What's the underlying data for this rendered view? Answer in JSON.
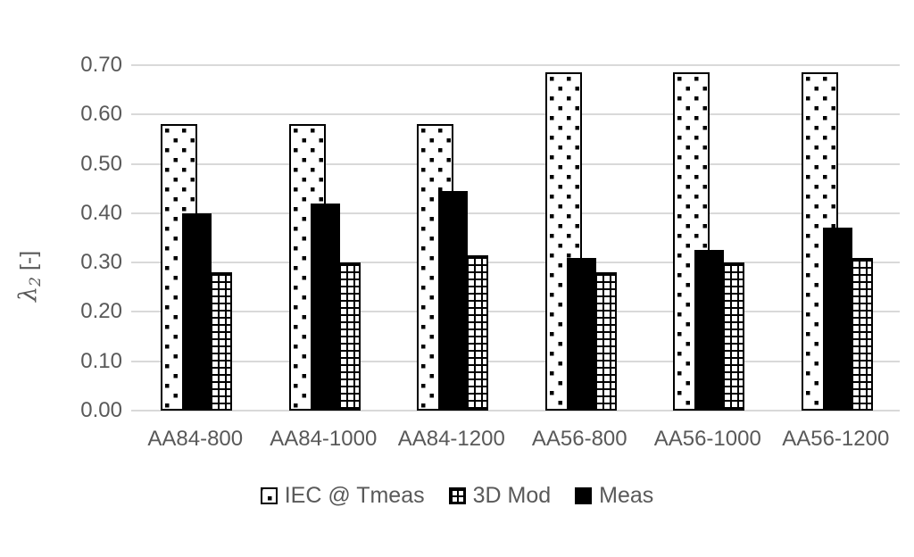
{
  "chart_data": {
    "type": "bar",
    "title": "",
    "ylabel": {
      "main": "λ",
      "sub": "2",
      "unit": "[-]"
    },
    "xlabel": "",
    "categories": [
      "AA84-800",
      "AA84-1000",
      "AA84-1200",
      "AA56-800",
      "AA56-1000",
      "AA56-1200"
    ],
    "series": [
      {
        "name": "IEC @ Tmeas",
        "pattern": "dotted",
        "values": [
          0.58,
          0.58,
          0.58,
          0.685,
          0.685,
          0.685
        ]
      },
      {
        "name": "Meas",
        "pattern": "solid",
        "values": [
          0.4,
          0.42,
          0.445,
          0.31,
          0.325,
          0.37
        ]
      },
      {
        "name": "3D Mod",
        "pattern": "grid",
        "values": [
          0.28,
          0.3,
          0.315,
          0.28,
          0.3,
          0.31
        ]
      }
    ],
    "legend_order": [
      "IEC @ Tmeas",
      "3D Mod",
      "Meas"
    ],
    "legend_position": "bottom",
    "y_axis": {
      "min": 0.0,
      "max": 0.7,
      "step": 0.1,
      "tick_decimals": 2
    },
    "grid": true,
    "colors": {
      "bar_fill": "#000000",
      "text": "#595959",
      "gridline": "#D9D9D9",
      "background": "#FFFFFF"
    }
  }
}
